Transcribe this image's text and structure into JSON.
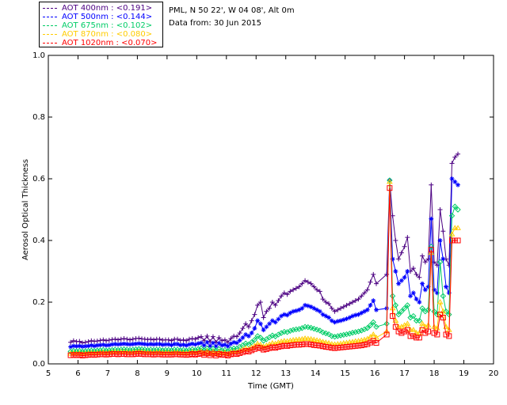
{
  "header": {
    "station": "PML, N 50 22', W 04 08', Alt 0m",
    "date": "Data from: 30 Jun 2015"
  },
  "legend": [
    {
      "label": "AOT  400nm : <0.191>",
      "color": "#4b0082"
    },
    {
      "label": "AOT  500nm : <0.144>",
      "color": "#0000ff"
    },
    {
      "label": "AOT  675nm : <0.102>",
      "color": "#00cc66"
    },
    {
      "label": "AOT  870nm : <0.080>",
      "color": "#ffcc00"
    },
    {
      "label": "AOT 1020nm : <0.070>",
      "color": "#ff0000"
    }
  ],
  "chart_data": {
    "type": "scatter",
    "xlabel": "Time (GMT)",
    "ylabel": "Aerosol Optical Thickness",
    "xlim": [
      5,
      20
    ],
    "ylim": [
      0.0,
      1.0
    ],
    "xticks": [
      5,
      6,
      7,
      8,
      9,
      10,
      11,
      12,
      13,
      14,
      15,
      16,
      17,
      18,
      19,
      20
    ],
    "yticks": [
      0.0,
      0.2,
      0.4,
      0.6,
      0.8,
      1.0
    ],
    "x": [
      5.75,
      5.85,
      5.95,
      6.05,
      6.15,
      6.25,
      6.35,
      6.45,
      6.55,
      6.65,
      6.75,
      6.85,
      6.95,
      7.05,
      7.15,
      7.25,
      7.35,
      7.45,
      7.55,
      7.65,
      7.75,
      7.85,
      7.95,
      8.05,
      8.15,
      8.25,
      8.35,
      8.45,
      8.55,
      8.65,
      8.75,
      8.85,
      8.95,
      9.05,
      9.15,
      9.25,
      9.35,
      9.45,
      9.55,
      9.65,
      9.75,
      9.85,
      9.95,
      10.05,
      10.15,
      10.25,
      10.35,
      10.45,
      10.55,
      10.65,
      10.75,
      10.85,
      10.95,
      11.05,
      11.15,
      11.25,
      11.35,
      11.45,
      11.55,
      11.65,
      11.75,
      11.85,
      11.95,
      12.05,
      12.15,
      12.25,
      12.35,
      12.45,
      12.55,
      12.65,
      12.75,
      12.85,
      12.95,
      13.05,
      13.15,
      13.25,
      13.35,
      13.45,
      13.55,
      13.65,
      13.75,
      13.85,
      13.95,
      14.05,
      14.15,
      14.25,
      14.35,
      14.45,
      14.55,
      14.65,
      14.75,
      14.85,
      14.95,
      15.05,
      15.15,
      15.25,
      15.35,
      15.45,
      15.55,
      15.65,
      15.75,
      15.85,
      15.95,
      16.05,
      16.4,
      16.5,
      16.6,
      16.7,
      16.8,
      16.9,
      17.0,
      17.1,
      17.2,
      17.3,
      17.4,
      17.5,
      17.6,
      17.7,
      17.8,
      17.9,
      18.0,
      18.1,
      18.2,
      18.3,
      18.4,
      18.5,
      18.6,
      18.7,
      18.8
    ],
    "series": [
      {
        "name": "AOT  400nm",
        "marker": "plus",
        "color": "#4b0082",
        "values": [
          0.07,
          0.075,
          0.072,
          0.073,
          0.068,
          0.07,
          0.072,
          0.075,
          0.073,
          0.074,
          0.076,
          0.078,
          0.075,
          0.077,
          0.079,
          0.08,
          0.078,
          0.08,
          0.082,
          0.08,
          0.078,
          0.08,
          0.082,
          0.083,
          0.081,
          0.08,
          0.079,
          0.08,
          0.078,
          0.08,
          0.08,
          0.077,
          0.078,
          0.078,
          0.075,
          0.08,
          0.08,
          0.076,
          0.078,
          0.075,
          0.08,
          0.082,
          0.08,
          0.085,
          0.088,
          0.075,
          0.09,
          0.072,
          0.088,
          0.07,
          0.085,
          0.075,
          0.078,
          0.07,
          0.082,
          0.09,
          0.088,
          0.1,
          0.115,
          0.13,
          0.12,
          0.14,
          0.16,
          0.19,
          0.2,
          0.15,
          0.17,
          0.18,
          0.2,
          0.19,
          0.205,
          0.22,
          0.23,
          0.225,
          0.235,
          0.24,
          0.245,
          0.25,
          0.26,
          0.27,
          0.265,
          0.26,
          0.25,
          0.24,
          0.235,
          0.21,
          0.2,
          0.195,
          0.18,
          0.17,
          0.175,
          0.18,
          0.185,
          0.19,
          0.195,
          0.2,
          0.205,
          0.21,
          0.22,
          0.23,
          0.24,
          0.265,
          0.29,
          0.26,
          0.29,
          0.595,
          0.48,
          0.4,
          0.34,
          0.36,
          0.38,
          0.41,
          0.3,
          0.31,
          0.29,
          0.28,
          0.35,
          0.33,
          0.34,
          0.58,
          0.33,
          0.32,
          0.5,
          0.43,
          0.34,
          0.32,
          0.65,
          0.67,
          0.68
        ]
      },
      {
        "name": "AOT  500nm",
        "marker": "star",
        "color": "#0000ff",
        "values": [
          0.055,
          0.058,
          0.057,
          0.058,
          0.056,
          0.057,
          0.058,
          0.06,
          0.058,
          0.06,
          0.061,
          0.062,
          0.06,
          0.061,
          0.063,
          0.064,
          0.063,
          0.064,
          0.065,
          0.064,
          0.063,
          0.064,
          0.065,
          0.066,
          0.065,
          0.064,
          0.063,
          0.064,
          0.063,
          0.064,
          0.064,
          0.062,
          0.063,
          0.063,
          0.061,
          0.064,
          0.064,
          0.061,
          0.062,
          0.06,
          0.063,
          0.065,
          0.063,
          0.066,
          0.068,
          0.06,
          0.07,
          0.058,
          0.068,
          0.057,
          0.067,
          0.06,
          0.062,
          0.057,
          0.065,
          0.07,
          0.068,
          0.076,
          0.085,
          0.095,
          0.09,
          0.1,
          0.115,
          0.14,
          0.13,
          0.11,
          0.12,
          0.13,
          0.14,
          0.135,
          0.145,
          0.155,
          0.16,
          0.158,
          0.165,
          0.17,
          0.172,
          0.175,
          0.18,
          0.19,
          0.188,
          0.185,
          0.18,
          0.175,
          0.17,
          0.16,
          0.155,
          0.15,
          0.14,
          0.135,
          0.138,
          0.14,
          0.143,
          0.146,
          0.15,
          0.155,
          0.158,
          0.16,
          0.165,
          0.17,
          0.175,
          0.19,
          0.205,
          0.175,
          0.18,
          0.595,
          0.34,
          0.3,
          0.26,
          0.27,
          0.28,
          0.3,
          0.22,
          0.23,
          0.21,
          0.2,
          0.26,
          0.24,
          0.25,
          0.47,
          0.24,
          0.23,
          0.4,
          0.34,
          0.25,
          0.23,
          0.6,
          0.59,
          0.58
        ]
      },
      {
        "name": "AOT  675nm",
        "marker": "diamond",
        "color": "#00cc66",
        "values": [
          0.04,
          0.042,
          0.041,
          0.042,
          0.04,
          0.041,
          0.042,
          0.043,
          0.042,
          0.043,
          0.044,
          0.045,
          0.043,
          0.044,
          0.045,
          0.046,
          0.045,
          0.046,
          0.047,
          0.046,
          0.045,
          0.046,
          0.047,
          0.048,
          0.047,
          0.046,
          0.045,
          0.046,
          0.045,
          0.046,
          0.046,
          0.044,
          0.045,
          0.045,
          0.044,
          0.046,
          0.046,
          0.044,
          0.045,
          0.043,
          0.045,
          0.047,
          0.045,
          0.048,
          0.05,
          0.043,
          0.05,
          0.042,
          0.049,
          0.041,
          0.048,
          0.043,
          0.045,
          0.041,
          0.047,
          0.05,
          0.049,
          0.055,
          0.06,
          0.066,
          0.063,
          0.07,
          0.078,
          0.09,
          0.085,
          0.075,
          0.08,
          0.086,
          0.092,
          0.089,
          0.095,
          0.1,
          0.104,
          0.103,
          0.107,
          0.11,
          0.112,
          0.113,
          0.116,
          0.12,
          0.119,
          0.117,
          0.114,
          0.111,
          0.108,
          0.102,
          0.099,
          0.096,
          0.09,
          0.088,
          0.09,
          0.092,
          0.094,
          0.096,
          0.098,
          0.101,
          0.103,
          0.105,
          0.108,
          0.112,
          0.116,
          0.125,
          0.135,
          0.12,
          0.13,
          0.595,
          0.22,
          0.19,
          0.16,
          0.17,
          0.18,
          0.19,
          0.15,
          0.155,
          0.14,
          0.14,
          0.18,
          0.17,
          0.175,
          0.38,
          0.17,
          0.16,
          0.33,
          0.22,
          0.17,
          0.16,
          0.48,
          0.51,
          0.5
        ]
      },
      {
        "name": "AOT  870nm",
        "marker": "triangle",
        "color": "#ffcc00",
        "values": [
          0.033,
          0.034,
          0.033,
          0.034,
          0.032,
          0.033,
          0.034,
          0.035,
          0.034,
          0.035,
          0.036,
          0.037,
          0.035,
          0.036,
          0.037,
          0.038,
          0.037,
          0.038,
          0.038,
          0.037,
          0.036,
          0.037,
          0.038,
          0.039,
          0.038,
          0.037,
          0.036,
          0.037,
          0.036,
          0.037,
          0.037,
          0.035,
          0.036,
          0.036,
          0.035,
          0.037,
          0.037,
          0.035,
          0.036,
          0.034,
          0.036,
          0.038,
          0.036,
          0.038,
          0.04,
          0.034,
          0.04,
          0.033,
          0.039,
          0.032,
          0.038,
          0.034,
          0.036,
          0.032,
          0.037,
          0.039,
          0.038,
          0.042,
          0.046,
          0.05,
          0.048,
          0.053,
          0.058,
          0.065,
          0.062,
          0.056,
          0.059,
          0.063,
          0.067,
          0.065,
          0.069,
          0.072,
          0.074,
          0.073,
          0.075,
          0.077,
          0.078,
          0.079,
          0.08,
          0.082,
          0.081,
          0.08,
          0.078,
          0.076,
          0.074,
          0.071,
          0.069,
          0.067,
          0.064,
          0.063,
          0.064,
          0.065,
          0.067,
          0.068,
          0.07,
          0.071,
          0.073,
          0.074,
          0.076,
          0.078,
          0.081,
          0.087,
          0.095,
          0.085,
          0.105,
          0.59,
          0.18,
          0.14,
          0.12,
          0.12,
          0.125,
          0.13,
          0.11,
          0.11,
          0.1,
          0.1,
          0.13,
          0.12,
          0.125,
          0.36,
          0.12,
          0.115,
          0.2,
          0.17,
          0.12,
          0.11,
          0.42,
          0.44,
          0.44
        ]
      },
      {
        "name": "AOT 1020nm",
        "marker": "square",
        "color": "#ff0000",
        "values": [
          0.028,
          0.029,
          0.028,
          0.029,
          0.027,
          0.028,
          0.029,
          0.03,
          0.029,
          0.03,
          0.031,
          0.031,
          0.03,
          0.031,
          0.032,
          0.032,
          0.031,
          0.032,
          0.032,
          0.031,
          0.031,
          0.031,
          0.032,
          0.033,
          0.032,
          0.031,
          0.031,
          0.031,
          0.03,
          0.031,
          0.031,
          0.03,
          0.03,
          0.03,
          0.03,
          0.031,
          0.031,
          0.03,
          0.03,
          0.029,
          0.03,
          0.032,
          0.03,
          0.032,
          0.034,
          0.029,
          0.034,
          0.028,
          0.033,
          0.027,
          0.032,
          0.029,
          0.03,
          0.027,
          0.031,
          0.033,
          0.032,
          0.035,
          0.038,
          0.042,
          0.04,
          0.044,
          0.048,
          0.053,
          0.051,
          0.046,
          0.048,
          0.051,
          0.054,
          0.052,
          0.055,
          0.057,
          0.059,
          0.058,
          0.06,
          0.061,
          0.062,
          0.062,
          0.063,
          0.064,
          0.064,
          0.063,
          0.061,
          0.06,
          0.059,
          0.057,
          0.055,
          0.054,
          0.052,
          0.051,
          0.052,
          0.053,
          0.054,
          0.055,
          0.056,
          0.057,
          0.058,
          0.059,
          0.06,
          0.062,
          0.064,
          0.069,
          0.075,
          0.068,
          0.095,
          0.57,
          0.155,
          0.12,
          0.105,
          0.1,
          0.105,
          0.11,
          0.09,
          0.09,
          0.085,
          0.085,
          0.11,
          0.1,
          0.105,
          0.37,
          0.1,
          0.095,
          0.16,
          0.15,
          0.095,
          0.09,
          0.4,
          0.4,
          0.4
        ]
      }
    ]
  }
}
